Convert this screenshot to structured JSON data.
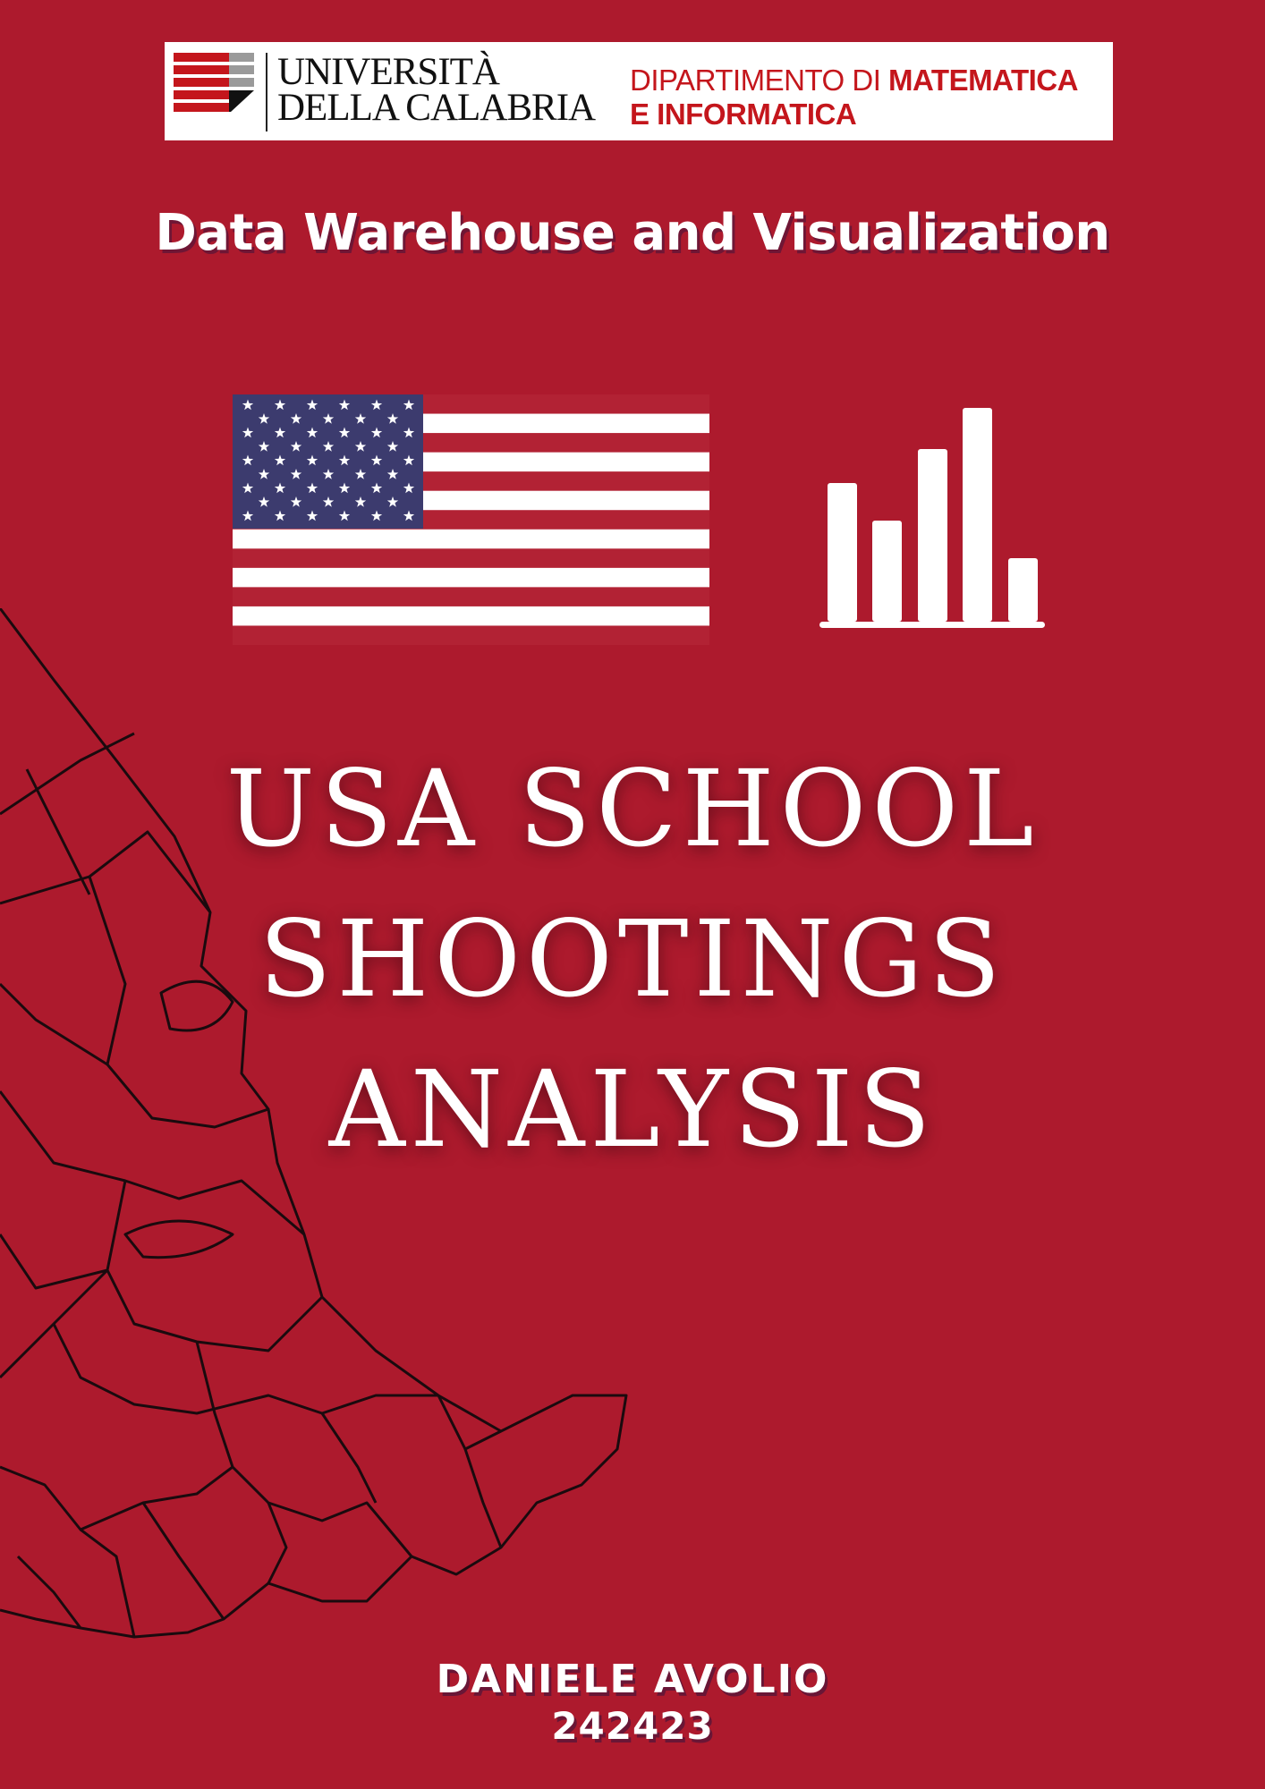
{
  "header": {
    "university_line1": "UNIVERSITÀ",
    "university_line2": "DELLA CALABRIA",
    "department_prefix": "DIPARTIMENTO DI ",
    "department_bold1": "MATEMATICA",
    "department_bold2": "E INFORMATICA"
  },
  "course": "Data Warehouse and Visualization",
  "title_lines": [
    "USA SCHOOL",
    "SHOOTINGS",
    "ANALYSIS"
  ],
  "author": "DANIELE AVOLIO",
  "student_id": "242423",
  "icons": [
    "us-flag-icon",
    "bar-chart-icon",
    "northeast-usa-map"
  ],
  "colors": {
    "background": "#ad1a2d",
    "flag_red": "#b22234",
    "flag_blue": "#3c3b6e",
    "brand_red": "#c4161c",
    "text": "#ffffff"
  }
}
